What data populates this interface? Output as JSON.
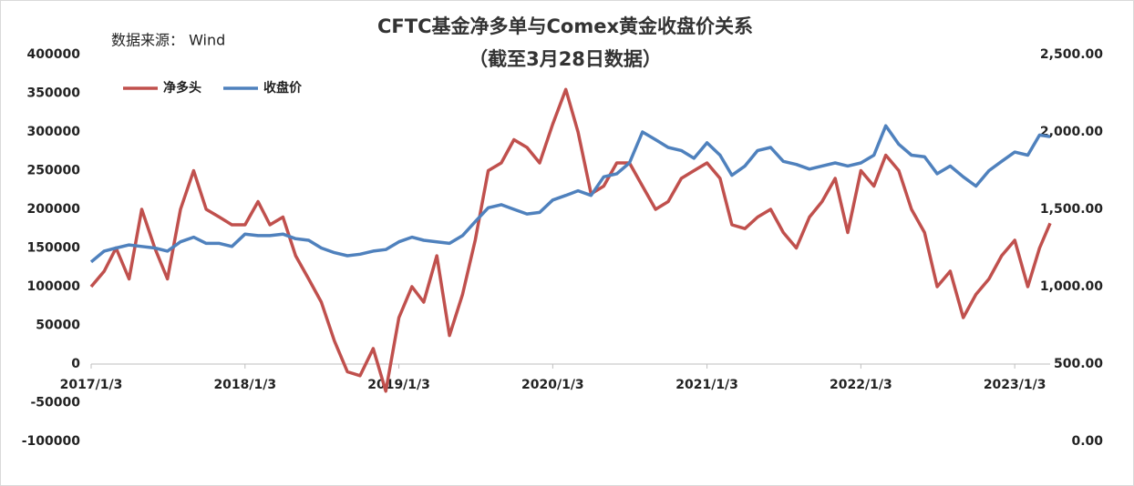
{
  "chart_data": {
    "type": "line",
    "title": "CFTC基金净多单与Comex黄金收盘价关系",
    "subtitle": "（截至3月28日数据）",
    "source": "数据来源：  Wind",
    "x": [
      "2017/1/3",
      "2017/2/3",
      "2017/3/3",
      "2017/4/3",
      "2017/5/3",
      "2017/6/3",
      "2017/7/3",
      "2017/8/3",
      "2017/9/3",
      "2017/10/3",
      "2017/11/3",
      "2017/12/3",
      "2018/1/3",
      "2018/2/3",
      "2018/3/3",
      "2018/4/3",
      "2018/5/3",
      "2018/6/3",
      "2018/7/3",
      "2018/8/3",
      "2018/9/3",
      "2018/10/3",
      "2018/11/3",
      "2018/12/3",
      "2019/1/3",
      "2019/2/3",
      "2019/3/3",
      "2019/4/3",
      "2019/5/3",
      "2019/6/3",
      "2019/7/3",
      "2019/8/3",
      "2019/9/3",
      "2019/10/3",
      "2019/11/3",
      "2019/12/3",
      "2020/1/3",
      "2020/2/3",
      "2020/3/3",
      "2020/4/3",
      "2020/5/3",
      "2020/6/3",
      "2020/7/3",
      "2020/8/3",
      "2020/9/3",
      "2020/10/3",
      "2020/11/3",
      "2020/12/3",
      "2021/1/3",
      "2021/2/3",
      "2021/3/3",
      "2021/4/3",
      "2021/5/3",
      "2021/6/3",
      "2021/7/3",
      "2021/8/3",
      "2021/9/3",
      "2021/10/3",
      "2021/11/3",
      "2021/12/3",
      "2022/1/3",
      "2022/2/3",
      "2022/3/3",
      "2022/4/3",
      "2022/5/3",
      "2022/6/3",
      "2022/7/3",
      "2022/8/3",
      "2022/9/3",
      "2022/10/3",
      "2022/11/3",
      "2022/12/3",
      "2023/1/3",
      "2023/2/3",
      "2023/3/3",
      "2023/3/28"
    ],
    "xlim": [
      "2017/1/3",
      "2023/3/28"
    ],
    "xticks": [
      "2017/1/3",
      "2018/1/3",
      "2019/1/3",
      "2020/1/3",
      "2021/1/3",
      "2022/1/3",
      "2023/1/3"
    ],
    "series": [
      {
        "name": "净多头",
        "color": "#c0504d",
        "values": [
          100000,
          120000,
          150000,
          110000,
          200000,
          150000,
          110000,
          200000,
          250000,
          200000,
          190000,
          180000,
          180000,
          210000,
          180000,
          190000,
          140000,
          110000,
          80000,
          30000,
          -10000,
          -15000,
          20000,
          -35000,
          60000,
          100000,
          80000,
          140000,
          37000,
          90000,
          160000,
          250000,
          260000,
          290000,
          280000,
          260000,
          310000,
          355000,
          300000,
          220000,
          230000,
          260000,
          260000,
          230000,
          200000,
          210000,
          240000,
          250000,
          260000,
          240000,
          180000,
          175000,
          190000,
          200000,
          170000,
          150000,
          190000,
          210000,
          240000,
          170000,
          250000,
          230000,
          270000,
          250000,
          200000,
          170000,
          100000,
          120000,
          60000,
          90000,
          110000,
          140000,
          160000,
          100000,
          150000,
          182000
        ]
      },
      {
        "name": "收盘价",
        "color": "#4f81bd",
        "axis": "y2",
        "values": [
          1160,
          1230,
          1250,
          1270,
          1260,
          1250,
          1230,
          1290,
          1320,
          1280,
          1280,
          1260,
          1340,
          1330,
          1330,
          1340,
          1310,
          1300,
          1250,
          1220,
          1200,
          1210,
          1230,
          1240,
          1290,
          1320,
          1300,
          1290,
          1280,
          1330,
          1420,
          1510,
          1530,
          1500,
          1470,
          1480,
          1560,
          1590,
          1620,
          1590,
          1710,
          1730,
          1800,
          2000,
          1950,
          1900,
          1880,
          1830,
          1930,
          1850,
          1720,
          1780,
          1880,
          1900,
          1810,
          1790,
          1760,
          1780,
          1800,
          1780,
          1800,
          1850,
          2040,
          1920,
          1850,
          1840,
          1730,
          1780,
          1710,
          1650,
          1750,
          1810,
          1870,
          1850,
          1980,
          1970
        ]
      }
    ],
    "ylim": [
      -100000,
      400000
    ],
    "yticks": [
      -100000,
      -50000,
      0,
      50000,
      100000,
      150000,
      200000,
      250000,
      300000,
      350000,
      400000
    ],
    "y2lim": [
      0,
      2500
    ],
    "y2ticks": [
      {
        "value": 0,
        "label": "0.00"
      },
      {
        "value": 500,
        "label": "500.00"
      },
      {
        "value": 1000,
        "label": "1,000.00"
      },
      {
        "value": 1500,
        "label": "1,500.00"
      },
      {
        "value": 2000,
        "label": "2,000.00"
      },
      {
        "value": 2500,
        "label": "2,500.00"
      }
    ],
    "grid": false
  }
}
